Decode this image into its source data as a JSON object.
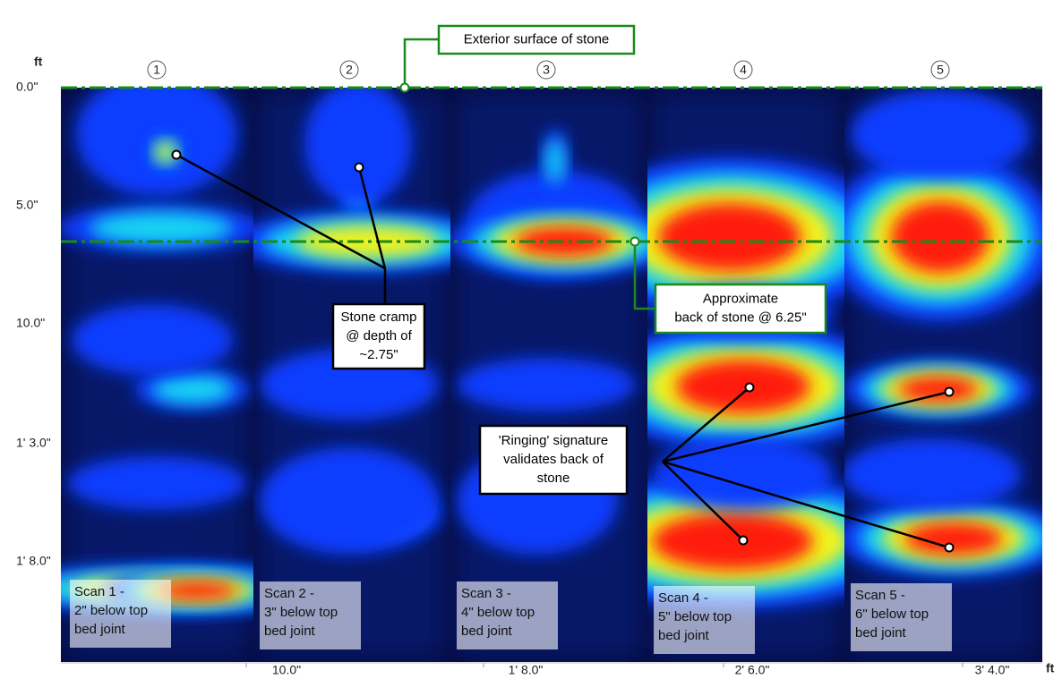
{
  "y_axis": {
    "unit": "ft",
    "ticks": [
      "0.0\"",
      "5.0\"",
      "10.0\"",
      "1' 3.0\"",
      "1' 8.0\""
    ]
  },
  "x_axis": {
    "unit": "ft",
    "ticks": [
      "10.0\"",
      "1' 8.0\"",
      "2' 6.0\"",
      "3' 4.0\""
    ]
  },
  "scans": [
    {
      "number": "1",
      "label": [
        "Scan 1 -",
        "2\" below top",
        "bed joint"
      ]
    },
    {
      "number": "2",
      "label": [
        "Scan 2 -",
        "3\" below top",
        "bed joint"
      ]
    },
    {
      "number": "3",
      "label": [
        "Scan 3 -",
        "4\" below top",
        "bed joint"
      ]
    },
    {
      "number": "4",
      "label": [
        "Scan 4 -",
        "5\" below top",
        "bed joint"
      ]
    },
    {
      "number": "5",
      "label": [
        "Scan 5 -",
        "6\" below top",
        "bed joint"
      ]
    }
  ],
  "annotations": {
    "exterior": [
      "Exterior surface of stone"
    ],
    "back": [
      "Approximate",
      "back of stone @ 6.25\""
    ],
    "cramp": [
      "Stone cramp",
      "@ depth of",
      "~2.75\""
    ],
    "ringing": [
      "'Ringing' signature",
      "validates back of",
      "stone"
    ]
  }
}
